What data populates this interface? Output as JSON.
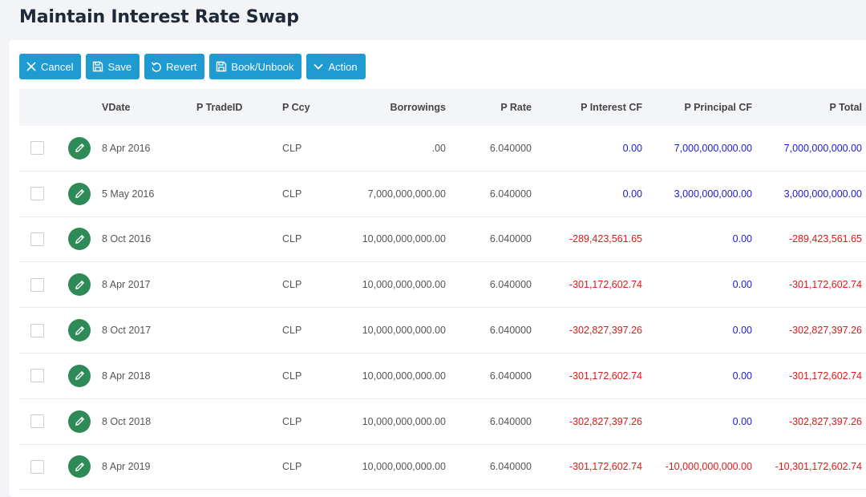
{
  "page": {
    "title": "Maintain Interest Rate Swap"
  },
  "toolbar": {
    "cancel_label": "Cancel",
    "save_label": "Save",
    "revert_label": "Revert",
    "book_label": "Book/Unbook",
    "action_label": "Action"
  },
  "colors": {
    "button": "#1f9bd1",
    "edit": "#2e8b57",
    "positive": "#1b1bd6",
    "negative": "#e01818"
  },
  "grid": {
    "columns": {
      "vdate": "VDate",
      "trade_id": "P TradeID",
      "ccy": "P Ccy",
      "borrowings": "Borrowings",
      "rate": "P Rate",
      "interest_cf": "P Interest CF",
      "principal_cf": "P Principal CF",
      "total": "P Total"
    },
    "rows": [
      {
        "vdate": "8 Apr 2016",
        "trade_id": "",
        "ccy": "CLP",
        "borrowings": ".00",
        "rate": "6.040000",
        "interest_cf": "0.00",
        "interest_sign": "pos",
        "principal_cf": "7,000,000,000.00",
        "principal_sign": "pos",
        "total": "7,000,000,000.00",
        "total_sign": "pos"
      },
      {
        "vdate": "5 May 2016",
        "trade_id": "",
        "ccy": "CLP",
        "borrowings": "7,000,000,000.00",
        "rate": "6.040000",
        "interest_cf": "0.00",
        "interest_sign": "pos",
        "principal_cf": "3,000,000,000.00",
        "principal_sign": "pos",
        "total": "3,000,000,000.00",
        "total_sign": "pos"
      },
      {
        "vdate": "8 Oct 2016",
        "trade_id": "",
        "ccy": "CLP",
        "borrowings": "10,000,000,000.00",
        "rate": "6.040000",
        "interest_cf": "-289,423,561.65",
        "interest_sign": "neg",
        "principal_cf": "0.00",
        "principal_sign": "pos",
        "total": "-289,423,561.65",
        "total_sign": "neg"
      },
      {
        "vdate": "8 Apr 2017",
        "trade_id": "",
        "ccy": "CLP",
        "borrowings": "10,000,000,000.00",
        "rate": "6.040000",
        "interest_cf": "-301,172,602.74",
        "interest_sign": "neg",
        "principal_cf": "0.00",
        "principal_sign": "pos",
        "total": "-301,172,602.74",
        "total_sign": "neg"
      },
      {
        "vdate": "8 Oct 2017",
        "trade_id": "",
        "ccy": "CLP",
        "borrowings": "10,000,000,000.00",
        "rate": "6.040000",
        "interest_cf": "-302,827,397.26",
        "interest_sign": "neg",
        "principal_cf": "0.00",
        "principal_sign": "pos",
        "total": "-302,827,397.26",
        "total_sign": "neg"
      },
      {
        "vdate": "8 Apr 2018",
        "trade_id": "",
        "ccy": "CLP",
        "borrowings": "10,000,000,000.00",
        "rate": "6.040000",
        "interest_cf": "-301,172,602.74",
        "interest_sign": "neg",
        "principal_cf": "0.00",
        "principal_sign": "pos",
        "total": "-301,172,602.74",
        "total_sign": "neg"
      },
      {
        "vdate": "8 Oct 2018",
        "trade_id": "",
        "ccy": "CLP",
        "borrowings": "10,000,000,000.00",
        "rate": "6.040000",
        "interest_cf": "-302,827,397.26",
        "interest_sign": "neg",
        "principal_cf": "0.00",
        "principal_sign": "pos",
        "total": "-302,827,397.26",
        "total_sign": "neg"
      },
      {
        "vdate": "8 Apr 2019",
        "trade_id": "",
        "ccy": "CLP",
        "borrowings": "10,000,000,000.00",
        "rate": "6.040000",
        "interest_cf": "-301,172,602.74",
        "interest_sign": "neg",
        "principal_cf": "-10,000,000,000.00",
        "principal_sign": "neg",
        "total": "-10,301,172,602.74",
        "total_sign": "neg"
      }
    ]
  }
}
